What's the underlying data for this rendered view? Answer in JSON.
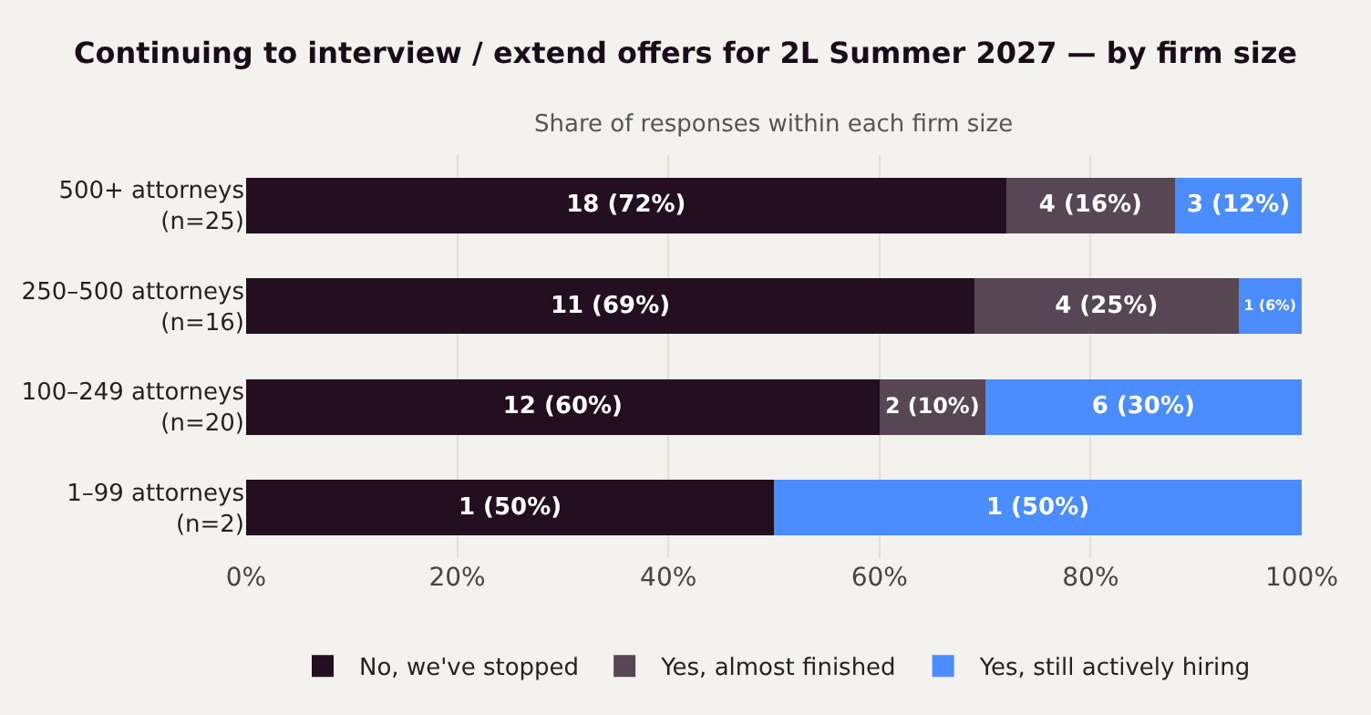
{
  "chart_data": {
    "type": "bar",
    "orientation": "horizontal",
    "stacked": true,
    "title": "Continuing to interview / extend offers for 2L Summer 2027 — by firm size",
    "subtitle": "Share of responses within each firm size",
    "categories": [
      "500+ attorneys\n(n=25)",
      "250–500 attorneys\n(n=16)",
      "100–249 attorneys\n(n=20)",
      "1–99 attorneys\n(n=2)"
    ],
    "series": [
      {
        "name": "No, we've stopped",
        "color": "#240f21",
        "values": [
          72,
          69,
          60,
          50
        ],
        "value_labels": [
          "18 (72%)",
          "11 (69%)",
          "12 (60%)",
          "1 (50%)"
        ]
      },
      {
        "name": "Yes, almost finished",
        "color": "#574653",
        "values": [
          16,
          25,
          10,
          null
        ],
        "value_labels": [
          "4 (16%)",
          "4 (25%)",
          "2 (10%)",
          null
        ]
      },
      {
        "name": "Yes, still actively hiring",
        "color": "#4b8cff",
        "values": [
          12,
          6,
          30,
          50
        ],
        "value_labels": [
          "3 (12%)",
          "1 (6%)",
          "6 (30%)",
          "1 (50%)"
        ]
      }
    ],
    "xlim": [
      0,
      100
    ],
    "xticks": [
      {
        "value": 0,
        "label": "0%"
      },
      {
        "value": 20,
        "label": "20%"
      },
      {
        "value": 40,
        "label": "40%"
      },
      {
        "value": 60,
        "label": "60%"
      },
      {
        "value": 80,
        "label": "80%"
      },
      {
        "value": 100,
        "label": "100%"
      }
    ],
    "grid": "x",
    "legend": "bottom"
  }
}
